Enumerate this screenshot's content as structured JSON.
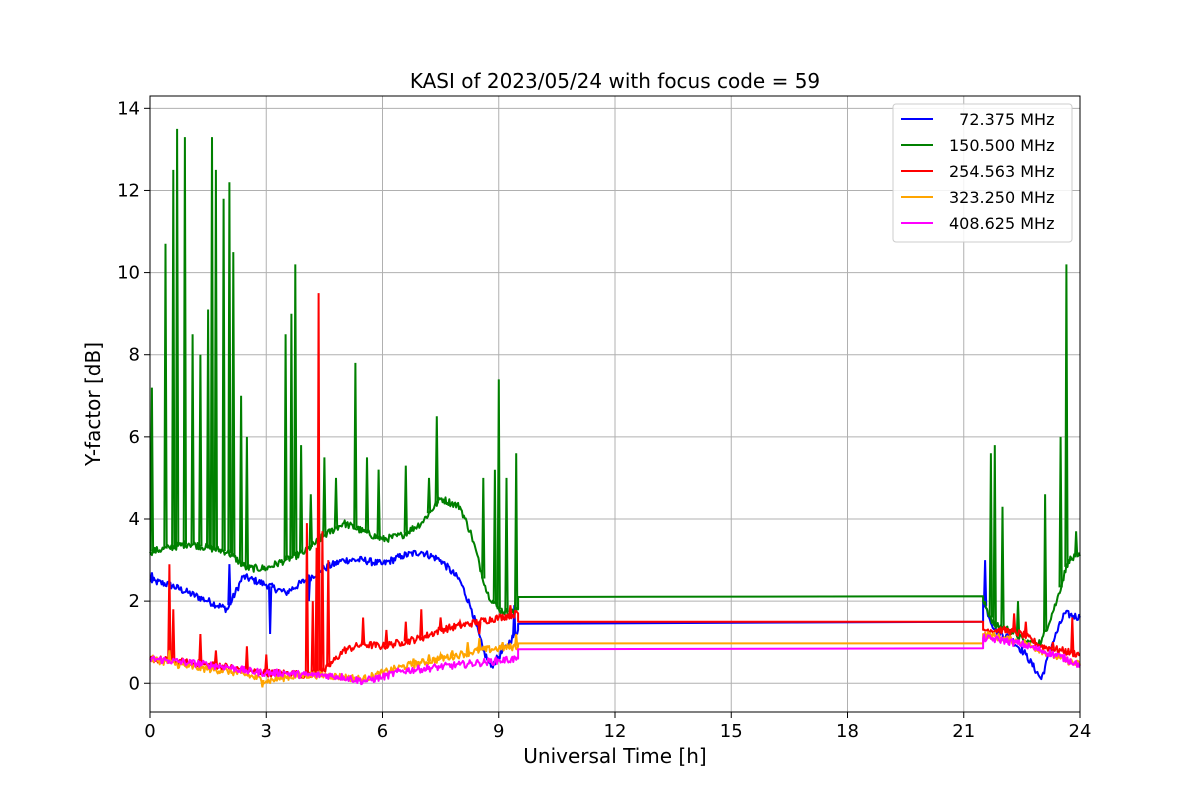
{
  "chart_data": {
    "type": "line",
    "title": "KASI of 2023/05/24 with focus code = 59",
    "xlabel": "Universal Time [h]",
    "ylabel": "Y-factor [dB]",
    "xlim": [
      0,
      24
    ],
    "ylim": [
      -0.7,
      14.3
    ],
    "xticks": [
      0,
      3,
      6,
      9,
      12,
      15,
      18,
      21,
      24
    ],
    "yticks": [
      0,
      2,
      4,
      6,
      8,
      10,
      12,
      14
    ],
    "grid": true,
    "legend_position": "top-right",
    "series": [
      {
        "name": "  72.375 MHz",
        "color": "#0000ff",
        "x": [
          0,
          0.5,
          1,
          1.5,
          2,
          2.4,
          3,
          3.5,
          4,
          4.5,
          5,
          5.5,
          6,
          6.5,
          7,
          7.5,
          8,
          8.3,
          8.6,
          8.8,
          9.2,
          9.5,
          9.5,
          21.5,
          21.5,
          21.8,
          22.2,
          22.6,
          23.0,
          23.3,
          23.6,
          24
        ],
        "y": [
          2.5,
          2.4,
          2.2,
          2.0,
          1.8,
          2.6,
          2.4,
          2.2,
          2.5,
          2.8,
          3.0,
          3.0,
          2.9,
          3.1,
          3.2,
          3.0,
          2.5,
          1.8,
          0.8,
          0.4,
          0.9,
          1.3,
          1.45,
          1.5,
          2.0,
          1.3,
          1.1,
          0.7,
          0.1,
          1.0,
          1.7,
          1.6
        ],
        "spikes": [
          [
            0.05,
            2.7
          ],
          [
            2.05,
            2.9
          ],
          [
            3.1,
            1.2
          ],
          [
            4.1,
            2.0
          ],
          [
            9.4,
            1.9
          ],
          [
            21.55,
            3.0
          ]
        ]
      },
      {
        "name": "150.500 MHz",
        "color": "#008000",
        "x": [
          0,
          0.5,
          1,
          1.5,
          2,
          2.5,
          3,
          3.5,
          4,
          4.5,
          5,
          5.5,
          6,
          6.5,
          7,
          7.5,
          8,
          8.3,
          8.7,
          9.0,
          9.3,
          9.5,
          9.5,
          21.5,
          21.5,
          21.8,
          22.2,
          22.6,
          23.0,
          23.4,
          23.7,
          24
        ],
        "y": [
          3.2,
          3.3,
          3.4,
          3.3,
          3.2,
          2.8,
          2.8,
          3.0,
          3.2,
          3.6,
          3.9,
          3.7,
          3.5,
          3.6,
          3.9,
          4.5,
          4.3,
          3.6,
          2.2,
          1.8,
          1.7,
          1.8,
          2.1,
          2.12,
          2.0,
          1.4,
          1.3,
          1.0,
          1.0,
          2.0,
          3.0,
          3.1
        ],
        "spikes": [
          [
            0.05,
            7.2
          ],
          [
            0.4,
            10.7
          ],
          [
            0.6,
            12.5
          ],
          [
            0.7,
            13.5
          ],
          [
            0.9,
            13.3
          ],
          [
            1.1,
            8.5
          ],
          [
            1.3,
            8.0
          ],
          [
            1.5,
            9.1
          ],
          [
            1.6,
            13.3
          ],
          [
            1.7,
            12.5
          ],
          [
            1.9,
            11.8
          ],
          [
            2.05,
            12.2
          ],
          [
            2.15,
            10.5
          ],
          [
            2.35,
            7.0
          ],
          [
            2.5,
            6.0
          ],
          [
            3.5,
            8.5
          ],
          [
            3.65,
            9.0
          ],
          [
            3.75,
            10.2
          ],
          [
            3.9,
            5.8
          ],
          [
            4.15,
            4.6
          ],
          [
            4.5,
            5.5
          ],
          [
            4.8,
            5.0
          ],
          [
            5.3,
            7.8
          ],
          [
            5.6,
            5.5
          ],
          [
            5.9,
            5.2
          ],
          [
            6.6,
            5.3
          ],
          [
            7.2,
            5.0
          ],
          [
            7.4,
            6.5
          ],
          [
            8.6,
            5.0
          ],
          [
            8.9,
            5.2
          ],
          [
            9.0,
            7.4
          ],
          [
            9.2,
            5.0
          ],
          [
            9.45,
            5.6
          ],
          [
            21.7,
            5.6
          ],
          [
            21.8,
            5.8
          ],
          [
            22.0,
            4.3
          ],
          [
            22.4,
            2.0
          ],
          [
            23.1,
            4.6
          ],
          [
            23.5,
            6.0
          ],
          [
            23.65,
            10.2
          ],
          [
            23.75,
            3.0
          ],
          [
            23.9,
            3.7
          ]
        ]
      },
      {
        "name": "254.563 MHz",
        "color": "#ff0000",
        "x": [
          0,
          0.5,
          1,
          1.5,
          2,
          2.5,
          3,
          3.5,
          4,
          4.5,
          5,
          5.5,
          6,
          6.5,
          7,
          7.5,
          8,
          8.5,
          9,
          9.5,
          9.5,
          21.5,
          21.5,
          22.0,
          22.5,
          23.0,
          23.5,
          24
        ],
        "y": [
          0.6,
          0.55,
          0.5,
          0.45,
          0.4,
          0.3,
          0.25,
          0.25,
          0.2,
          0.3,
          0.8,
          0.95,
          0.9,
          1.0,
          1.1,
          1.3,
          1.4,
          1.5,
          1.6,
          1.7,
          1.5,
          1.5,
          1.3,
          1.3,
          1.2,
          0.9,
          0.8,
          0.7
        ],
        "spikes": [
          [
            0.5,
            2.9
          ],
          [
            0.6,
            1.8
          ],
          [
            1.3,
            1.2
          ],
          [
            1.7,
            0.8
          ],
          [
            2.5,
            0.9
          ],
          [
            3.0,
            0.7
          ],
          [
            4.05,
            3.9
          ],
          [
            4.2,
            2.0
          ],
          [
            4.3,
            3.3
          ],
          [
            4.35,
            9.5
          ],
          [
            4.45,
            3.7
          ],
          [
            4.6,
            3.0
          ],
          [
            5.5,
            1.6
          ],
          [
            6.1,
            1.3
          ],
          [
            6.6,
            1.5
          ],
          [
            7.0,
            1.8
          ],
          [
            7.5,
            1.6
          ],
          [
            8.0,
            1.5
          ],
          [
            8.5,
            1.2
          ],
          [
            9.3,
            1.9
          ],
          [
            22.3,
            1.7
          ],
          [
            22.6,
            1.5
          ],
          [
            23.3,
            1.0
          ],
          [
            23.8,
            1.6
          ]
        ]
      },
      {
        "name": "323.250 MHz",
        "color": "#ffa500",
        "x": [
          0,
          0.5,
          1,
          1.5,
          2,
          2.5,
          3,
          3.5,
          4,
          4.5,
          5,
          5.5,
          6,
          6.5,
          7,
          7.5,
          8,
          8.5,
          9,
          9.5,
          9.5,
          21.5,
          21.5,
          22.0,
          22.5,
          23.0,
          23.5,
          24
        ],
        "y": [
          0.6,
          0.5,
          0.4,
          0.35,
          0.3,
          0.2,
          0.05,
          0.15,
          0.2,
          0.2,
          0.15,
          0.1,
          0.25,
          0.4,
          0.5,
          0.6,
          0.7,
          0.8,
          0.85,
          0.9,
          0.97,
          0.97,
          1.2,
          1.1,
          1.0,
          0.8,
          0.6,
          0.45
        ],
        "spikes": [
          [
            0.5,
            0.8
          ],
          [
            2.9,
            -0.1
          ],
          [
            6.8,
            0.6
          ],
          [
            7.2,
            0.7
          ],
          [
            7.5,
            0.7
          ],
          [
            7.8,
            0.8
          ],
          [
            8.2,
            1.0
          ],
          [
            8.5,
            1.1
          ],
          [
            9.1,
            1.0
          ],
          [
            9.45,
            1.2
          ]
        ]
      },
      {
        "name": "408.625 MHz",
        "color": "#ff00ff",
        "x": [
          0,
          0.5,
          1,
          1.5,
          2,
          2.5,
          3,
          3.5,
          4,
          4.5,
          5,
          5.5,
          6,
          6.5,
          7,
          7.5,
          8,
          8.5,
          9,
          9.5,
          9.5,
          21.5,
          21.5,
          22.0,
          22.5,
          23.0,
          23.5,
          24
        ],
        "y": [
          0.6,
          0.55,
          0.5,
          0.45,
          0.4,
          0.3,
          0.25,
          0.25,
          0.2,
          0.2,
          0.15,
          0.05,
          0.15,
          0.3,
          0.35,
          0.4,
          0.45,
          0.5,
          0.55,
          0.6,
          0.83,
          0.85,
          1.1,
          1.05,
          0.95,
          0.8,
          0.65,
          0.45
        ],
        "spikes": []
      }
    ]
  }
}
